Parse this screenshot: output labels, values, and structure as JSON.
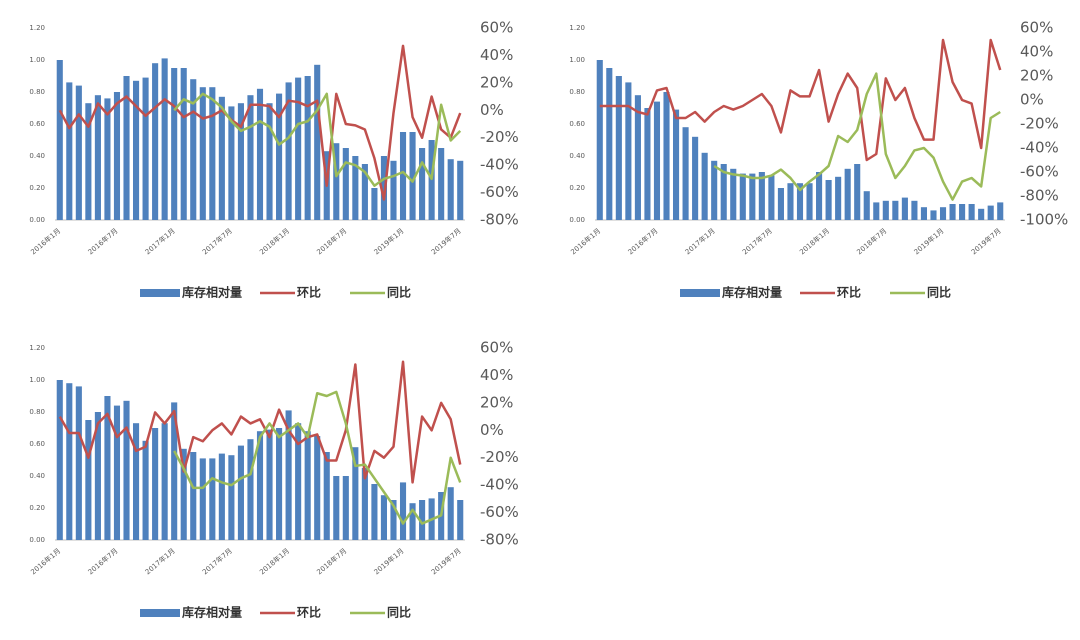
{
  "chart_data": [
    {
      "type": "combo",
      "categories": [
        "2016年1月",
        null,
        null,
        null,
        null,
        null,
        "2016年7月",
        null,
        null,
        null,
        null,
        null,
        "2017年1月",
        null,
        null,
        null,
        null,
        null,
        "2017年7月",
        null,
        null,
        null,
        null,
        null,
        "2018年1月",
        null,
        null,
        null,
        null,
        null,
        "2018年7月",
        null,
        null,
        null,
        null,
        null,
        "2019年1月",
        null,
        null,
        null,
        null,
        null,
        "2019年7月"
      ],
      "ylim": [
        0,
        1.2
      ],
      "yticks": [
        {
          "value": 0,
          "label": "0.00"
        },
        {
          "value": 0.2,
          "label": "0.20"
        },
        {
          "value": 0.4,
          "label": "0.40"
        },
        {
          "value": 0.6,
          "label": "0.60"
        },
        {
          "value": 0.8,
          "label": "0.80"
        },
        {
          "value": 1.0,
          "label": "1.00"
        },
        {
          "value": 1.2,
          "label": "1.20"
        }
      ],
      "y2lim": [
        -80,
        60
      ],
      "y2ticks": [
        {
          "value": -80,
          "label": "-80%"
        },
        {
          "value": -60,
          "label": "-60%"
        },
        {
          "value": -40,
          "label": "-40%"
        },
        {
          "value": -20,
          "label": "-20%"
        },
        {
          "value": 0,
          "label": "0%"
        },
        {
          "value": 20,
          "label": "20%"
        },
        {
          "value": 40,
          "label": "40%"
        },
        {
          "value": 60,
          "label": "60%"
        }
      ],
      "series": [
        {
          "name": "库存相对量",
          "type": "bar",
          "color": "#4f81bd",
          "values": [
            1.0,
            0.86,
            0.84,
            0.73,
            0.78,
            0.76,
            0.8,
            0.9,
            0.87,
            0.89,
            0.98,
            1.01,
            0.95,
            0.95,
            0.88,
            0.83,
            0.83,
            0.77,
            0.71,
            0.73,
            0.78,
            0.82,
            0.73,
            0.79,
            0.86,
            0.89,
            0.9,
            0.97,
            0.43,
            0.48,
            0.45,
            0.4,
            0.35,
            0.2,
            0.4,
            0.37,
            0.55,
            0.55,
            0.45,
            0.5,
            0.45,
            0.38,
            0.37
          ]
        },
        {
          "name": "环比",
          "type": "line",
          "axis": "y2",
          "color": "#c0504d",
          "values": [
            0,
            -13,
            -3,
            -12,
            5,
            -3,
            5,
            10,
            3,
            -4,
            2,
            8,
            3,
            -5,
            -1,
            -6,
            -4,
            0,
            -7,
            -12,
            4,
            4,
            3,
            -5,
            7,
            6,
            3,
            7,
            -55,
            12,
            -10,
            -11,
            -14,
            -35,
            -65,
            -2,
            47,
            -5,
            -20,
            10,
            -14,
            -20,
            -2
          ]
        },
        {
          "name": "同比",
          "type": "line",
          "axis": "y2",
          "color": "#9bbb59",
          "values": [
            null,
            null,
            null,
            null,
            null,
            null,
            null,
            null,
            null,
            null,
            null,
            null,
            0,
            8,
            5,
            12,
            8,
            2,
            -8,
            -15,
            -12,
            -8,
            -12,
            -25,
            -20,
            -10,
            -8,
            0,
            12,
            -48,
            -38,
            -40,
            -45,
            -55,
            -50,
            -48,
            -45,
            -52,
            -38,
            -50,
            4,
            -22,
            -15
          ]
        }
      ]
    },
    {
      "type": "combo",
      "categories": [
        "2016年1月",
        null,
        null,
        null,
        null,
        null,
        "2016年7月",
        null,
        null,
        null,
        null,
        null,
        "2017年1月",
        null,
        null,
        null,
        null,
        null,
        "2017年7月",
        null,
        null,
        null,
        null,
        null,
        "2018年1月",
        null,
        null,
        null,
        null,
        null,
        "2018年7月",
        null,
        null,
        null,
        null,
        null,
        "2019年1月",
        null,
        null,
        null,
        null,
        null,
        "2019年7月"
      ],
      "ylim": [
        0,
        1.2
      ],
      "yticks": [
        {
          "value": 0,
          "label": "0.00"
        },
        {
          "value": 0.2,
          "label": "0.20"
        },
        {
          "value": 0.4,
          "label": "0.40"
        },
        {
          "value": 0.6,
          "label": "0.60"
        },
        {
          "value": 0.8,
          "label": "0.80"
        },
        {
          "value": 1.0,
          "label": "1.00"
        },
        {
          "value": 1.2,
          "label": "1.20"
        }
      ],
      "y2lim": [
        -100,
        60
      ],
      "y2ticks": [
        {
          "value": -100,
          "label": "-100%"
        },
        {
          "value": -80,
          "label": "-80%"
        },
        {
          "value": -60,
          "label": "-60%"
        },
        {
          "value": -40,
          "label": "-40%"
        },
        {
          "value": -20,
          "label": "-20%"
        },
        {
          "value": 0,
          "label": "0%"
        },
        {
          "value": 20,
          "label": "20%"
        },
        {
          "value": 40,
          "label": "40%"
        },
        {
          "value": 60,
          "label": "60%"
        }
      ],
      "series": [
        {
          "name": "库存相对量",
          "type": "bar",
          "color": "#4f81bd",
          "values": [
            1.0,
            0.95,
            0.9,
            0.86,
            0.78,
            0.7,
            0.74,
            0.8,
            0.69,
            0.58,
            0.52,
            0.42,
            0.37,
            0.35,
            0.32,
            0.29,
            0.29,
            0.3,
            0.28,
            0.2,
            0.23,
            0.23,
            0.23,
            0.3,
            0.25,
            0.27,
            0.32,
            0.35,
            0.18,
            0.11,
            0.12,
            0.12,
            0.14,
            0.12,
            0.08,
            0.06,
            0.08,
            0.1,
            0.1,
            0.1,
            0.07,
            0.09,
            0.11
          ]
        },
        {
          "name": "环比",
          "type": "line",
          "axis": "y2",
          "color": "#c0504d",
          "values": [
            -5,
            -5,
            -5,
            -5,
            -10,
            -12,
            8,
            10,
            -15,
            -15,
            -10,
            -18,
            -10,
            -5,
            -8,
            -5,
            0,
            5,
            -5,
            -27,
            8,
            3,
            3,
            25,
            -18,
            5,
            22,
            10,
            -50,
            -45,
            18,
            0,
            10,
            -15,
            -33,
            -33,
            50,
            15,
            0,
            -3,
            -40,
            50,
            25
          ]
        },
        {
          "name": "同比",
          "type": "line",
          "axis": "y2",
          "color": "#9bbb59",
          "values": [
            null,
            null,
            null,
            null,
            null,
            null,
            null,
            null,
            null,
            null,
            null,
            null,
            -55,
            -60,
            -62,
            -63,
            -65,
            -65,
            -63,
            -58,
            -65,
            -75,
            -68,
            -62,
            -55,
            -30,
            -35,
            -25,
            5,
            22,
            -45,
            -65,
            -55,
            -42,
            -40,
            -48,
            -68,
            -83,
            -68,
            -65,
            -72,
            -15,
            -10
          ]
        }
      ]
    },
    {
      "type": "combo",
      "categories": [
        "2016年1月",
        null,
        null,
        null,
        null,
        null,
        "2016年7月",
        null,
        null,
        null,
        null,
        null,
        "2017年1月",
        null,
        null,
        null,
        null,
        null,
        "2017年7月",
        null,
        null,
        null,
        null,
        null,
        "2018年1月",
        null,
        null,
        null,
        null,
        null,
        "2018年7月",
        null,
        null,
        null,
        null,
        null,
        "2019年1月",
        null,
        null,
        null,
        null,
        null,
        "2019年7月"
      ],
      "ylim": [
        0,
        1.2
      ],
      "yticks": [
        {
          "value": 0,
          "label": "0.00"
        },
        {
          "value": 0.2,
          "label": "0.20"
        },
        {
          "value": 0.4,
          "label": "0.40"
        },
        {
          "value": 0.6,
          "label": "0.60"
        },
        {
          "value": 0.8,
          "label": "0.80"
        },
        {
          "value": 1.0,
          "label": "1.00"
        },
        {
          "value": 1.2,
          "label": "1.20"
        }
      ],
      "y2lim": [
        -80,
        60
      ],
      "y2ticks": [
        {
          "value": -80,
          "label": "-80%"
        },
        {
          "value": -60,
          "label": "-60%"
        },
        {
          "value": -40,
          "label": "-40%"
        },
        {
          "value": -20,
          "label": "-20%"
        },
        {
          "value": 0,
          "label": "0%"
        },
        {
          "value": 20,
          "label": "20%"
        },
        {
          "value": 40,
          "label": "40%"
        },
        {
          "value": 60,
          "label": "60%"
        }
      ],
      "series": [
        {
          "name": "库存相对量",
          "type": "bar",
          "color": "#4f81bd",
          "values": [
            1.0,
            0.98,
            0.96,
            0.75,
            0.8,
            0.9,
            0.84,
            0.87,
            0.73,
            0.62,
            0.7,
            0.73,
            0.86,
            0.57,
            0.55,
            0.51,
            0.51,
            0.54,
            0.53,
            0.59,
            0.63,
            0.68,
            0.69,
            0.7,
            0.81,
            0.73,
            0.68,
            0.65,
            0.55,
            0.4,
            0.4,
            0.58,
            0.45,
            0.35,
            0.28,
            0.25,
            0.36,
            0.23,
            0.25,
            0.26,
            0.3,
            0.33,
            0.25
          ]
        },
        {
          "name": "环比",
          "type": "line",
          "axis": "y2",
          "color": "#c0504d",
          "values": [
            10,
            -2,
            -2,
            -20,
            5,
            12,
            -5,
            2,
            -15,
            -12,
            13,
            5,
            14,
            -30,
            -5,
            -8,
            0,
            5,
            -3,
            10,
            5,
            8,
            -5,
            15,
            0,
            -10,
            -5,
            -3,
            -22,
            -22,
            0,
            48,
            -35,
            -15,
            -20,
            -12,
            50,
            -38,
            10,
            0,
            20,
            8,
            -25
          ]
        },
        {
          "name": "同比",
          "type": "line",
          "axis": "y2",
          "color": "#9bbb59",
          "values": [
            null,
            null,
            null,
            null,
            null,
            null,
            null,
            null,
            null,
            null,
            null,
            null,
            -15,
            -28,
            -42,
            -42,
            -35,
            -38,
            -40,
            -35,
            -32,
            -5,
            5,
            -5,
            0,
            5,
            -5,
            27,
            25,
            28,
            5,
            -26,
            -25,
            -35,
            -45,
            -55,
            -68,
            -58,
            -68,
            -65,
            -62,
            -20,
            -38
          ]
        }
      ]
    }
  ]
}
